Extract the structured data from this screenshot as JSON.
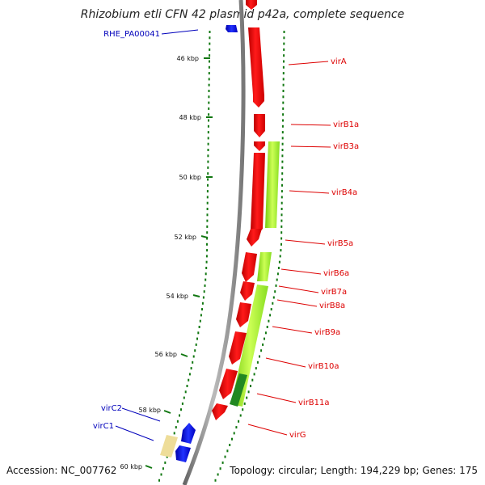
{
  "title": "Rhizobium etli CFN 42 plasmid p42a, complete sequence",
  "footer": {
    "accession": "Accession: NC_007762",
    "summary": "Topology: circular; Length: 194,229 bp; Genes: 175"
  },
  "scale_ticks": [
    {
      "label": "46 kbp"
    },
    {
      "label": "48 kbp"
    },
    {
      "label": "50 kbp"
    },
    {
      "label": "52 kbp"
    },
    {
      "label": "54 kbp"
    },
    {
      "label": "56 kbp"
    },
    {
      "label": "58 kbp"
    },
    {
      "label": "60 kbp"
    }
  ],
  "genes": [
    {
      "name": "RHE_PA00041",
      "strand": "reverse",
      "color": "#1010dd"
    },
    {
      "name": "virA",
      "strand": "forward",
      "color": "#ee0000"
    },
    {
      "name": "virB1a",
      "strand": "forward",
      "color": "#ee0000"
    },
    {
      "name": "virB3a",
      "strand": "forward",
      "color": "#ee0000"
    },
    {
      "name": "virB4a",
      "strand": "forward",
      "color": "#ee0000"
    },
    {
      "name": "virB5a",
      "strand": "forward",
      "color": "#ee0000"
    },
    {
      "name": "virB6a",
      "strand": "forward",
      "color": "#ee0000"
    },
    {
      "name": "virB7a",
      "strand": "forward",
      "color": "#ee0000"
    },
    {
      "name": "virB8a",
      "strand": "forward",
      "color": "#ee0000"
    },
    {
      "name": "virB9a",
      "strand": "forward",
      "color": "#ee0000"
    },
    {
      "name": "virB10a",
      "strand": "forward",
      "color": "#ee0000"
    },
    {
      "name": "virB11a",
      "strand": "forward",
      "color": "#ee0000"
    },
    {
      "name": "virG",
      "strand": "forward",
      "color": "#ee0000"
    },
    {
      "name": "virC2",
      "strand": "reverse",
      "color": "#1010dd"
    },
    {
      "name": "virC1",
      "strand": "reverse",
      "color": "#1010dd"
    }
  ],
  "colors": {
    "backbone": "#8a8a8a",
    "forward_label": "#dd0000",
    "reverse_label": "#0000bb",
    "dots": "#117711",
    "feature_green": "#99ee22",
    "feature_dark_green": "#228822",
    "feature_tan": "#eedd99"
  }
}
